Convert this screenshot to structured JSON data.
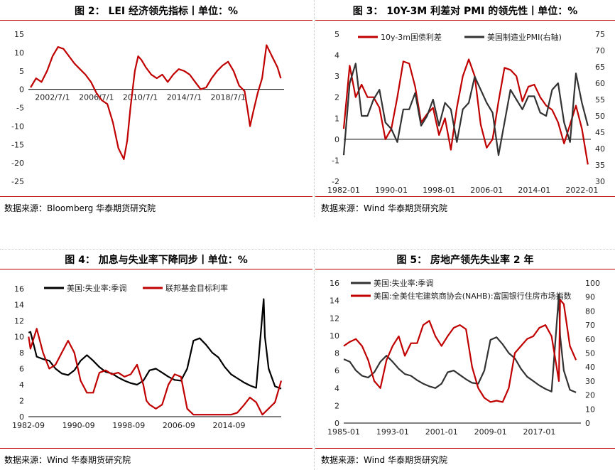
{
  "panels": [
    {
      "title": "图 2：   LEI 经济领先指标丨单位：%",
      "source": "数据来源：Bloomberg 华泰期货研究院"
    },
    {
      "title": "图 3：   10Y-3M 利差对 PMI 的领先性丨单位：%",
      "source": "数据来源：Wind 华泰期货研究院"
    },
    {
      "title": "图 4：   加息与失业率下降同步丨单位：%",
      "source": "数据来源：Wind 华泰期货研究院"
    },
    {
      "title": "图 5：   房地产领先失业率 2 年",
      "source": "数据来源：Wind 华泰期货研究院"
    }
  ],
  "chart_data": [
    {
      "type": "line",
      "x_ticks": [
        "2002/7/1",
        "2006/7/1",
        "2010/7/1",
        "2014/7/1",
        "2018/7/1"
      ],
      "x_tick_years": [
        2002.5,
        2006.5,
        2010.5,
        2014.5,
        2018.5
      ],
      "xlim": [
        2000.3,
        2023.6
      ],
      "ylim": [
        -25,
        15
      ],
      "y_ticks": [
        15,
        10,
        5,
        0,
        -5,
        -10,
        -15,
        -20,
        -25
      ],
      "colors": [
        "#c00000"
      ],
      "series": [
        {
          "x": [
            2000.5,
            2001.0,
            2001.5,
            2002.0,
            2002.5,
            2003.0,
            2003.5,
            2004.0,
            2004.5,
            2005.0,
            2005.5,
            2006.0,
            2006.5,
            2007.0,
            2007.5,
            2008.0,
            2008.5,
            2009.0,
            2009.3,
            2009.6,
            2010.0,
            2010.3,
            2010.6,
            2011.0,
            2011.5,
            2012.0,
            2012.5,
            2013.0,
            2013.5,
            2014.0,
            2014.5,
            2015.0,
            2015.5,
            2016.0,
            2016.5,
            2017.0,
            2017.5,
            2018.0,
            2018.5,
            2019.0,
            2019.5,
            2020.0,
            2020.3,
            2020.5,
            2020.8,
            2021.2,
            2021.6,
            2022.0,
            2022.5,
            2023.0,
            2023.3
          ],
          "y": [
            0.5,
            3,
            2,
            5,
            9,
            11.5,
            11,
            9,
            7,
            5.5,
            4,
            2,
            -1,
            -3,
            -4,
            -9,
            -16,
            -19,
            -14,
            -5,
            5,
            9,
            8,
            6,
            4,
            3,
            4,
            2,
            4,
            5.5,
            5,
            4,
            2,
            0,
            0.5,
            3,
            5,
            6.5,
            7.5,
            5,
            1,
            -0.5,
            -6,
            -10,
            -6,
            -1,
            3,
            12,
            9,
            6,
            3
          ]
        }
      ]
    },
    {
      "type": "line",
      "x_ticks": [
        "1982-01",
        "1990-01",
        "1998-01",
        "2006-01",
        "2014-01",
        "2022-01"
      ],
      "x_tick_years": [
        1982,
        1990,
        1998,
        2006,
        2014,
        2022
      ],
      "xlim": [
        1982,
        2023.5
      ],
      "ylim": [
        -2,
        5
      ],
      "y_ticks": [
        5,
        4,
        3,
        2,
        1,
        0,
        -1,
        -2
      ],
      "ylim_right": [
        30,
        75
      ],
      "y_ticks_right": [
        75,
        70,
        65,
        60,
        55,
        50,
        45,
        40,
        35,
        30
      ],
      "legend": [
        "10y-3m国债利差",
        "美国制造业PMI(右轴)"
      ],
      "colors": [
        "#c00000",
        "#333333"
      ],
      "series": [
        {
          "name": "10y-3m国债利差",
          "x": [
            1982,
            1983,
            1984,
            1985,
            1986,
            1987,
            1988,
            1989,
            1990,
            1991,
            1992,
            1993,
            1994,
            1995,
            1996,
            1997,
            1998,
            1999,
            2000,
            2001,
            2002,
            2003,
            2004,
            2005,
            2006,
            2007,
            2008,
            2009,
            2010,
            2011,
            2012,
            2013,
            2014,
            2015,
            2016,
            2017,
            2018,
            2019,
            2020,
            2021,
            2022,
            2023
          ],
          "y": [
            0.5,
            3.5,
            2,
            2.6,
            2,
            2,
            1.5,
            0,
            0.5,
            2,
            3.7,
            3.6,
            2.5,
            0.8,
            1.2,
            1.5,
            0.2,
            1,
            -0.5,
            1.5,
            3,
            3.8,
            3,
            0.7,
            -0.4,
            0,
            1.8,
            3.4,
            3.3,
            3,
            1.8,
            2.5,
            2.6,
            2,
            1.6,
            1.4,
            0.8,
            -0.2,
            0.7,
            1.6,
            0.5,
            -1.2
          ]
        },
        {
          "name": "美国制造业PMI(右轴)",
          "x": [
            1982,
            1983,
            1984,
            1985,
            1986,
            1987,
            1988,
            1989,
            1990,
            1991,
            1992,
            1993,
            1994,
            1995,
            1996,
            1997,
            1998,
            1999,
            2000,
            2001,
            2002,
            2003,
            2004,
            2005,
            2006,
            2007,
            2008,
            2009,
            2010,
            2011,
            2012,
            2013,
            2014,
            2015,
            2016,
            2017,
            2018,
            2019,
            2020,
            2021,
            2022,
            2023
          ],
          "y": [
            38,
            60,
            66,
            50,
            50,
            55,
            58,
            48,
            46,
            42,
            52,
            52,
            57,
            47,
            50,
            55,
            47,
            54,
            52,
            42,
            52,
            54,
            62,
            58,
            54,
            51,
            38,
            48,
            58,
            55,
            52,
            56,
            56,
            51,
            50,
            58,
            60,
            48,
            42,
            63,
            54,
            47
          ]
        }
      ]
    },
    {
      "type": "line",
      "x_ticks": [
        "1982-09",
        "1990-09",
        "1998-09",
        "2006-09",
        "2014-09"
      ],
      "x_tick_years": [
        1982.67,
        1990.67,
        1998.67,
        2006.67,
        2014.67
      ],
      "xlim": [
        1982.67,
        2023.0
      ],
      "ylim": [
        0,
        16
      ],
      "y_ticks": [
        16,
        14,
        12,
        10,
        8,
        6,
        4,
        2,
        0
      ],
      "legend": [
        "美国:失业率:季调",
        "联邦基金目标利率"
      ],
      "colors": [
        "#000000",
        "#c00000"
      ],
      "series": [
        {
          "name": "美国:失业率:季调",
          "x": [
            1982.7,
            1983,
            1984,
            1985,
            1986,
            1987,
            1988,
            1989,
            1990,
            1991,
            1992,
            1993,
            1994,
            1995,
            1996,
            1997,
            1998,
            1999,
            2000,
            2001,
            2002,
            2003,
            2004,
            2005,
            2006,
            2007,
            2008,
            2009,
            2010,
            2011,
            2012,
            2013,
            2014,
            2015,
            2016,
            2017,
            2018,
            2019,
            2020.2,
            2020.4,
            2021,
            2022,
            2023
          ],
          "y": [
            10.5,
            10.6,
            7.5,
            7.2,
            7,
            6,
            5.4,
            5.2,
            5.8,
            7,
            7.7,
            7,
            6.2,
            5.6,
            5.4,
            4.9,
            4.5,
            4.2,
            4,
            4.5,
            5.8,
            6,
            5.5,
            5,
            4.6,
            4.5,
            6,
            9.5,
            9.8,
            9,
            8,
            7.4,
            6.2,
            5.3,
            4.8,
            4.3,
            3.9,
            3.6,
            14.7,
            10,
            6,
            3.8,
            3.5
          ]
        },
        {
          "name": "联邦基金目标利率",
          "x": [
            1982.7,
            1983,
            1984,
            1985,
            1986,
            1987,
            1988,
            1989,
            1990,
            1991,
            1992,
            1993,
            1994,
            1995,
            1996,
            1997,
            1998,
            1999,
            2000,
            2001,
            2001.5,
            2002,
            2003,
            2004,
            2005,
            2006,
            2007,
            2008,
            2009,
            2015,
            2016,
            2017,
            2018,
            2019,
            2020,
            2022,
            2023
          ],
          "y": [
            10,
            8.5,
            11,
            8,
            6,
            6.5,
            8,
            9.5,
            8,
            4.5,
            3,
            3,
            5.5,
            5.8,
            5.3,
            5.5,
            5,
            5.3,
            6.5,
            4,
            2,
            1.5,
            1,
            1.5,
            4,
            5.3,
            5,
            1,
            0.25,
            0.25,
            0.5,
            1.4,
            2.4,
            1.8,
            0.25,
            1.8,
            4.5
          ]
        }
      ]
    },
    {
      "type": "line",
      "x_ticks": [
        "1985-01",
        "1993-01",
        "2001-01",
        "2009-01",
        "2017-01"
      ],
      "x_tick_years": [
        1985,
        1993,
        2001,
        2009,
        2017
      ],
      "xlim": [
        1985,
        2023.8
      ],
      "ylim": [
        0,
        16
      ],
      "y_ticks": [
        16,
        14,
        12,
        10,
        8,
        6,
        4,
        2,
        0
      ],
      "ylim_right": [
        0,
        100
      ],
      "y_ticks_right": [
        100,
        90,
        80,
        70,
        60,
        50,
        40,
        30,
        20,
        10,
        0
      ],
      "legend": [
        "美国:失业率:季调",
        "美国:全美住宅建筑商协会(NAHB):富国银行住房市场指数"
      ],
      "colors": [
        "#333333",
        "#c00000"
      ],
      "series": [
        {
          "name": "美国:失业率:季调",
          "x": [
            1985,
            1986,
            1987,
            1988,
            1989,
            1990,
            1991,
            1992,
            1993,
            1994,
            1995,
            1996,
            1997,
            1998,
            1999,
            2000,
            2001,
            2002,
            2003,
            2004,
            2005,
            2006,
            2007,
            2008,
            2009,
            2010,
            2011,
            2012,
            2013,
            2014,
            2015,
            2016,
            2017,
            2018,
            2019,
            2020.2,
            2020.4,
            2021,
            2022,
            2023
          ],
          "y": [
            7.3,
            7,
            6,
            5.4,
            5.2,
            5.8,
            7,
            7.7,
            7,
            6.2,
            5.6,
            5.4,
            4.9,
            4.5,
            4.2,
            4,
            4.5,
            5.8,
            6,
            5.5,
            5,
            4.6,
            4.5,
            6,
            9.5,
            9.8,
            9,
            8,
            7.4,
            6.2,
            5.3,
            4.8,
            4.3,
            3.9,
            3.6,
            14.7,
            10,
            6,
            3.8,
            3.5
          ]
        },
        {
          "name": "美国:全美住宅建筑商协会(NAHB):富国银行住房市场指数",
          "x": [
            1985,
            1986,
            1987,
            1988,
            1989,
            1990,
            1991,
            1992,
            1993,
            1994,
            1995,
            1996,
            1997,
            1998,
            1999,
            2000,
            2001,
            2002,
            2003,
            2004,
            2005,
            2006,
            2007,
            2008,
            2009,
            2010,
            2011,
            2012,
            2013,
            2014,
            2015,
            2016,
            2017,
            2018,
            2019,
            2020.2,
            2020.4,
            2021,
            2022,
            2023
          ],
          "y": [
            55,
            58,
            60,
            55,
            45,
            30,
            25,
            45,
            55,
            62,
            48,
            57,
            57,
            70,
            73,
            62,
            55,
            62,
            68,
            70,
            67,
            40,
            25,
            18,
            15,
            16,
            15,
            25,
            50,
            55,
            60,
            62,
            68,
            70,
            62,
            30,
            88,
            85,
            55,
            45
          ]
        }
      ]
    }
  ]
}
